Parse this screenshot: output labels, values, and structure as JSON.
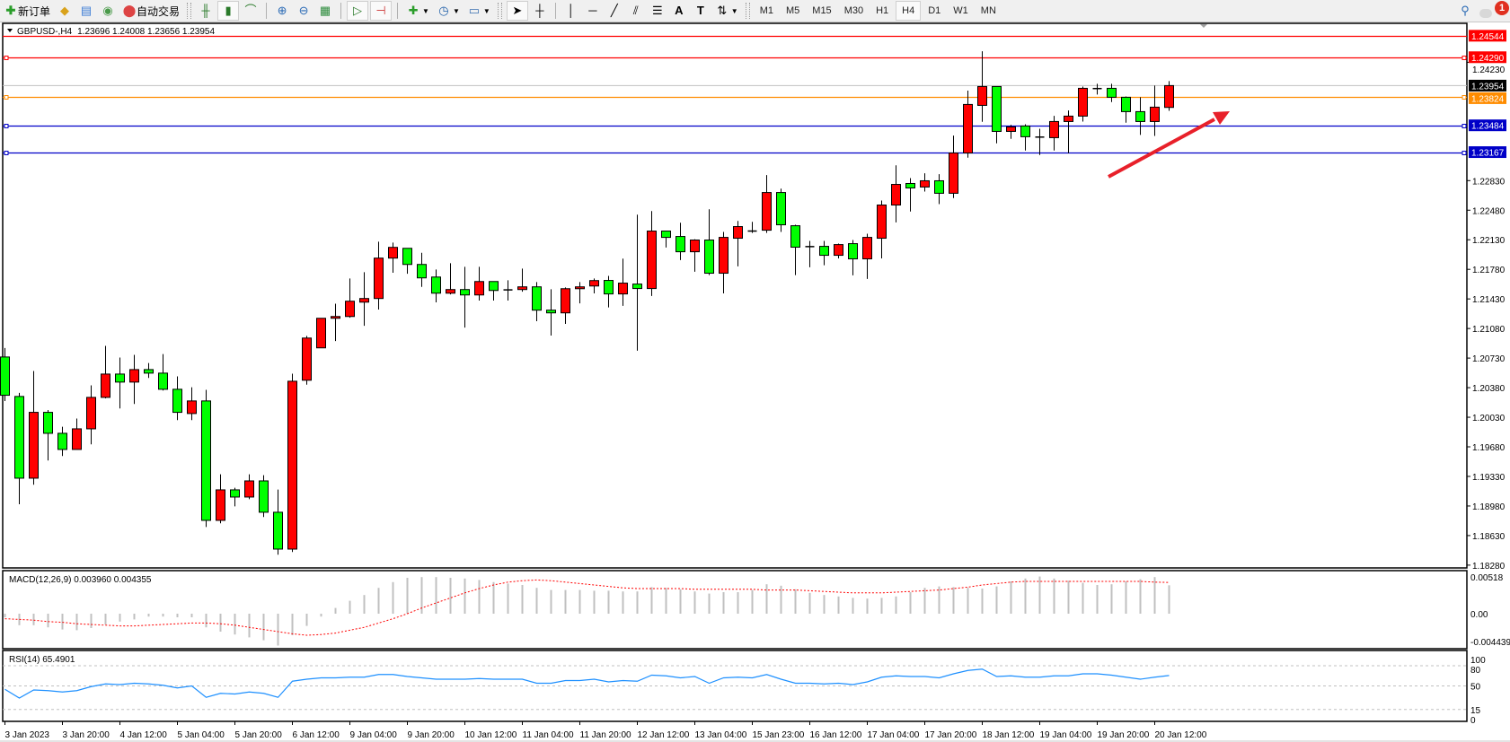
{
  "toolbar": {
    "new_order_label": "新订单",
    "auto_trading_label": "自动交易",
    "timeframes": [
      "M1",
      "M5",
      "M15",
      "M30",
      "H1",
      "H4",
      "D1",
      "W1",
      "MN"
    ],
    "active_timeframe": "H4",
    "notification_count": "1",
    "icons": [
      "new-order-icon",
      "metaeditor-icon",
      "navigator-icon",
      "signals-icon",
      "auto-trading-icon",
      "bar-chart-icon",
      "candlestick-icon",
      "line-chart-icon",
      "zoom-in-icon",
      "zoom-out-icon",
      "tile-windows-icon",
      "auto-scroll-icon",
      "chart-shift-icon",
      "indicators-icon",
      "periods-icon",
      "templates-icon",
      "cursor-icon",
      "crosshair-icon",
      "vertical-line-icon",
      "horizontal-line-icon",
      "trendline-icon",
      "equidistant-channel-icon",
      "fibonacci-icon",
      "text-icon",
      "text-label-icon",
      "arrows-icon",
      "search-icon",
      "notifications-icon"
    ]
  },
  "chart_header": {
    "symbol": "GBPUSD-,H4",
    "ohlc": "1.23696 1.24008 1.23656 1.23954"
  },
  "colors": {
    "bull": "#ff0000",
    "bear": "#00ff00",
    "rsi_line": "#1e90ff",
    "macd_hist": "#c0c0c0",
    "macd_signal": "#ff0000",
    "arrow": "#e8202a"
  },
  "chart_data": [
    {
      "type": "candlestick",
      "title": "GBPUSD-,H4",
      "ylim": [
        1.18247,
        1.24659
      ],
      "price_ticks": [
        "1.24230",
        "1.22830",
        "1.22480",
        "1.22130",
        "1.21780",
        "1.21430",
        "1.21080",
        "1.20730",
        "1.20380",
        "1.20030",
        "1.19680",
        "1.19330",
        "1.18980",
        "1.18630",
        "1.18280"
      ],
      "time_labels": [
        "3 Jan 2023",
        "3 Jan 20:00",
        "4 Jan 12:00",
        "5 Jan 04:00",
        "5 Jan 20:00",
        "6 Jan 12:00",
        "9 Jan 04:00",
        "9 Jan 20:00",
        "10 Jan 12:00",
        "11 Jan 04:00",
        "11 Jan 20:00",
        "12 Jan 12:00",
        "13 Jan 04:00",
        "15 Jan 23:00",
        "16 Jan 12:00",
        "17 Jan 04:00",
        "17 Jan 20:00",
        "18 Jan 12:00",
        "19 Jan 04:00",
        "19 Jan 20:00",
        "20 Jan 12:00"
      ],
      "horizontal_lines": [
        {
          "price": "1.24544",
          "color": "#ff0000",
          "markers": false
        },
        {
          "price": "1.24290",
          "color": "#ff0000",
          "markers": true
        },
        {
          "price": "1.23824",
          "color": "#ff8c00",
          "markers": true
        },
        {
          "price": "1.23484",
          "color": "#0000c8",
          "markers": true
        },
        {
          "price": "1.23167",
          "color": "#0000c8",
          "markers": true
        }
      ],
      "bid_line": {
        "price": "1.23954",
        "color": "#c0c0c0"
      },
      "ohlc": [
        [
          1.20743,
          1.20849,
          1.20222,
          1.2029
        ],
        [
          1.20276,
          1.20318,
          1.19001,
          1.19309
        ],
        [
          1.19309,
          1.20577,
          1.19231,
          1.20088
        ],
        [
          1.20088,
          1.20116,
          1.19518,
          1.1984
        ],
        [
          1.1984,
          1.19918,
          1.19571,
          1.19649
        ],
        [
          1.19649,
          1.20014,
          1.19649,
          1.19893
        ],
        [
          1.19893,
          1.20407,
          1.19709,
          1.20265
        ],
        [
          1.20265,
          1.20874,
          1.20254,
          1.20541
        ],
        [
          1.20541,
          1.20736,
          1.20134,
          1.20446
        ],
        [
          1.20446,
          1.20768,
          1.20187,
          1.20594
        ],
        [
          1.20594,
          1.20672,
          1.20495,
          1.20552
        ],
        [
          1.20552,
          1.20778,
          1.20346,
          1.20361
        ],
        [
          1.20361,
          1.20513,
          1.19996,
          1.20088
        ],
        [
          1.20074,
          1.20385,
          1.19996,
          1.20223
        ],
        [
          1.20223,
          1.20354,
          1.18732,
          1.1881
        ],
        [
          1.1881,
          1.19355,
          1.18775,
          1.19171
        ],
        [
          1.19171,
          1.19196,
          1.18976,
          1.19086
        ],
        [
          1.19086,
          1.19355,
          1.19061,
          1.19277
        ],
        [
          1.19277,
          1.19345,
          1.18849,
          1.18906
        ],
        [
          1.18906,
          1.19175,
          1.18403,
          1.1847
        ],
        [
          1.1847,
          1.20545,
          1.18435,
          1.20456
        ],
        [
          1.20468,
          1.20992,
          1.20415,
          1.20967
        ],
        [
          1.20851,
          1.21201,
          1.20851,
          1.21201
        ],
        [
          1.21201,
          1.21374,
          1.20932,
          1.21222
        ],
        [
          1.21222,
          1.21672,
          1.21208,
          1.21403
        ],
        [
          1.21392,
          1.21746,
          1.21112,
          1.21435
        ],
        [
          1.21435,
          1.22107,
          1.21304,
          1.21913
        ],
        [
          1.21913,
          1.22097,
          1.21739,
          1.2204
        ],
        [
          1.22029,
          1.22029,
          1.21728,
          1.21838
        ],
        [
          1.21838,
          1.21976,
          1.21573,
          1.21679
        ],
        [
          1.21689,
          1.21778,
          1.21389,
          1.21498
        ],
        [
          1.21498,
          1.21852,
          1.21484,
          1.21541
        ],
        [
          1.21541,
          1.2181,
          1.21091,
          1.21477
        ],
        [
          1.21477,
          1.2181,
          1.2141,
          1.21636
        ],
        [
          1.21636,
          1.21636,
          1.2141,
          1.2153
        ],
        [
          1.21537,
          1.21651,
          1.2141,
          1.21537
        ],
        [
          1.21541,
          1.21789,
          1.21516,
          1.21573
        ],
        [
          1.21573,
          1.21629,
          1.21166,
          1.21297
        ],
        [
          1.21297,
          1.21544,
          1.20996,
          1.21265
        ],
        [
          1.21265,
          1.21566,
          1.21134,
          1.21551
        ],
        [
          1.21551,
          1.21629,
          1.21378,
          1.21573
        ],
        [
          1.21583,
          1.21672,
          1.21495,
          1.21647
        ],
        [
          1.21649,
          1.21702,
          1.2133,
          1.21489
        ],
        [
          1.21489,
          1.21907,
          1.21348,
          1.21617
        ],
        [
          1.21606,
          1.22427,
          1.20817,
          1.21553
        ],
        [
          1.21553,
          1.2247,
          1.21465,
          1.22233
        ],
        [
          1.22233,
          1.22233,
          1.22038,
          1.22158
        ],
        [
          1.22169,
          1.22332,
          1.21889,
          1.21988
        ],
        [
          1.21988,
          1.22137,
          1.21751,
          1.22127
        ],
        [
          1.22127,
          1.22491,
          1.21712,
          1.21734
        ],
        [
          1.21734,
          1.22222,
          1.21496,
          1.22158
        ],
        [
          1.22148,
          1.22353,
          1.21815,
          1.22286
        ],
        [
          1.22233,
          1.22342,
          1.22211,
          1.22233
        ],
        [
          1.22243,
          1.22895,
          1.22211,
          1.22689
        ],
        [
          1.22689,
          1.22735,
          1.22222,
          1.22307
        ],
        [
          1.22296,
          1.22307,
          1.21712,
          1.22042
        ],
        [
          1.22049,
          1.22116,
          1.21804,
          1.22049
        ],
        [
          1.22052,
          1.22116,
          1.21829,
          1.21946
        ],
        [
          1.21946,
          1.22084,
          1.2191,
          1.22073
        ],
        [
          1.22084,
          1.22127,
          1.21709,
          1.21904
        ],
        [
          1.21904,
          1.22201,
          1.21666,
          1.22158
        ],
        [
          1.22148,
          1.22594,
          1.2191,
          1.22541
        ],
        [
          1.22541,
          1.23011,
          1.22335,
          1.22785
        ],
        [
          1.22796,
          1.2286,
          1.22464,
          1.22743
        ],
        [
          1.22754,
          1.22917,
          1.22701,
          1.22828
        ],
        [
          1.22828,
          1.22906,
          1.22552,
          1.2268
        ],
        [
          1.2268,
          1.23363,
          1.22623,
          1.23157
        ],
        [
          1.23157,
          1.23894,
          1.23101,
          1.23731
        ],
        [
          1.2372,
          1.24361,
          1.23526,
          1.23943
        ],
        [
          1.23943,
          1.23943,
          1.23271,
          1.23412
        ],
        [
          1.23412,
          1.2349,
          1.23324,
          1.23465
        ],
        [
          1.23476,
          1.23497,
          1.23186,
          1.23349
        ],
        [
          1.23345,
          1.23444,
          1.23133,
          1.23345
        ],
        [
          1.23338,
          1.23596,
          1.23186,
          1.23529
        ],
        [
          1.23529,
          1.2366,
          1.23154,
          1.23593
        ],
        [
          1.23593,
          1.23943,
          1.23529,
          1.23922
        ],
        [
          1.23919,
          1.23975,
          1.23848,
          1.23919
        ],
        [
          1.23922,
          1.23975,
          1.23759,
          1.23816
        ],
        [
          1.23816,
          1.23826,
          1.23515,
          1.23646
        ],
        [
          1.23646,
          1.23816,
          1.2337,
          1.23529
        ],
        [
          1.23529,
          1.23954,
          1.23359,
          1.23699
        ],
        [
          1.23696,
          1.24008,
          1.23656,
          1.23954
        ]
      ]
    },
    {
      "type": "bar",
      "title": "MACD(12,26,9) 0.003960 0.004355",
      "ylim": [
        -0.004875,
        0.006
      ],
      "ticks": [
        "0.00518",
        "0.00",
        "-0.004439"
      ],
      "histogram": [
        -0.0005,
        -0.0016,
        -0.0016,
        -0.0019,
        -0.0022,
        -0.0023,
        -0.002,
        -0.0015,
        -0.0011,
        -0.0008,
        -0.0004,
        -0.0004,
        -0.0005,
        -0.0005,
        -0.0019,
        -0.0025,
        -0.0029,
        -0.0033,
        -0.0037,
        -0.004439,
        -0.003,
        -0.0017,
        -0.0004,
        0.0008,
        0.0018,
        0.0026,
        0.0036,
        0.0044,
        0.005,
        0.0051,
        0.0051,
        0.005,
        0.0049,
        0.0047,
        0.0044,
        0.0042,
        0.004,
        0.0036,
        0.0033,
        0.0033,
        0.0033,
        0.0032,
        0.0032,
        0.0031,
        0.0031,
        0.0037,
        0.0036,
        0.0034,
        0.0031,
        0.0028,
        0.003,
        0.003,
        0.0033,
        0.0041,
        0.0039,
        0.0034,
        0.0029,
        0.0026,
        0.0024,
        0.0022,
        0.0021,
        0.0022,
        0.0024,
        0.003,
        0.0036,
        0.0038,
        0.0037,
        0.0036,
        0.0035,
        0.0038,
        0.0045,
        0.0049,
        0.00518,
        0.0049,
        0.0046,
        0.0043,
        0.004,
        0.0041,
        0.0045,
        0.0048,
        0.0051,
        0.00396
      ],
      "signal": [
        -0.0007,
        -0.0008,
        -0.0009,
        -0.0011,
        -0.0012,
        -0.0014,
        -0.0015,
        -0.0016,
        -0.0017,
        -0.0017,
        -0.0016,
        -0.0015,
        -0.0014,
        -0.0013,
        -0.0013,
        -0.0014,
        -0.0016,
        -0.0019,
        -0.0022,
        -0.0025,
        -0.0028,
        -0.003,
        -0.0029,
        -0.0027,
        -0.0023,
        -0.0019,
        -0.0013,
        -0.0007,
        0.0,
        0.0008,
        0.0015,
        0.0022,
        0.0029,
        0.0035,
        0.004,
        0.0044,
        0.0046,
        0.0047,
        0.0046,
        0.0044,
        0.0042,
        0.004,
        0.0038,
        0.0036,
        0.0035,
        0.0035,
        0.0035,
        0.0035,
        0.0034,
        0.0034,
        0.0034,
        0.0034,
        0.0034,
        0.0033,
        0.0033,
        0.0033,
        0.0032,
        0.0031,
        0.003,
        0.0029,
        0.0029,
        0.0029,
        0.003,
        0.0031,
        0.0032,
        0.0033,
        0.0035,
        0.0037,
        0.004,
        0.0042,
        0.0044,
        0.0045,
        0.0045,
        0.0045,
        0.0045,
        0.0045,
        0.0045,
        0.0045,
        0.0045,
        0.0045,
        0.0044,
        0.004355
      ]
    },
    {
      "type": "line",
      "title": "RSI(14) 65.4901",
      "ylim": [
        0,
        100
      ],
      "ticks": [
        "100",
        "80",
        "50",
        "15",
        "0"
      ],
      "levels": [
        80,
        50,
        15
      ],
      "values": [
        45,
        32,
        44,
        43,
        41,
        43,
        49,
        53,
        52,
        54,
        53,
        51,
        47,
        50,
        33,
        39,
        38,
        41,
        39,
        33,
        57,
        60,
        62,
        62,
        63,
        63,
        67,
        67,
        64,
        62,
        60,
        60,
        60,
        61,
        60,
        60,
        60,
        54,
        54,
        58,
        58,
        60,
        56,
        58,
        57,
        66,
        65,
        62,
        64,
        54,
        62,
        63,
        62,
        67,
        60,
        54,
        54,
        53,
        54,
        52,
        56,
        63,
        65,
        64,
        64,
        62,
        68,
        73,
        75,
        64,
        65,
        63,
        63,
        65,
        65,
        68,
        68,
        66,
        63,
        60,
        63,
        65.49
      ]
    }
  ]
}
